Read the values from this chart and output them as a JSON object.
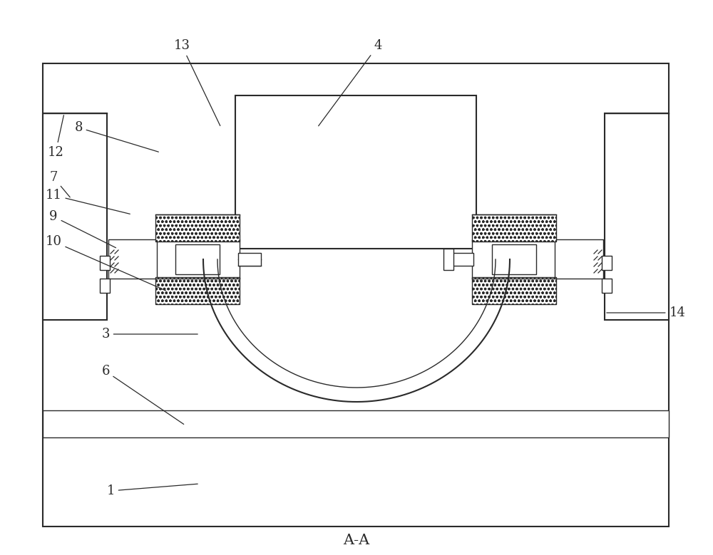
{
  "bg_color": "#ffffff",
  "line_color": "#2a2a2a",
  "label_color": "#2a2a2a",
  "title": "A-A",
  "title_fontsize": 15,
  "label_fontsize": 13
}
